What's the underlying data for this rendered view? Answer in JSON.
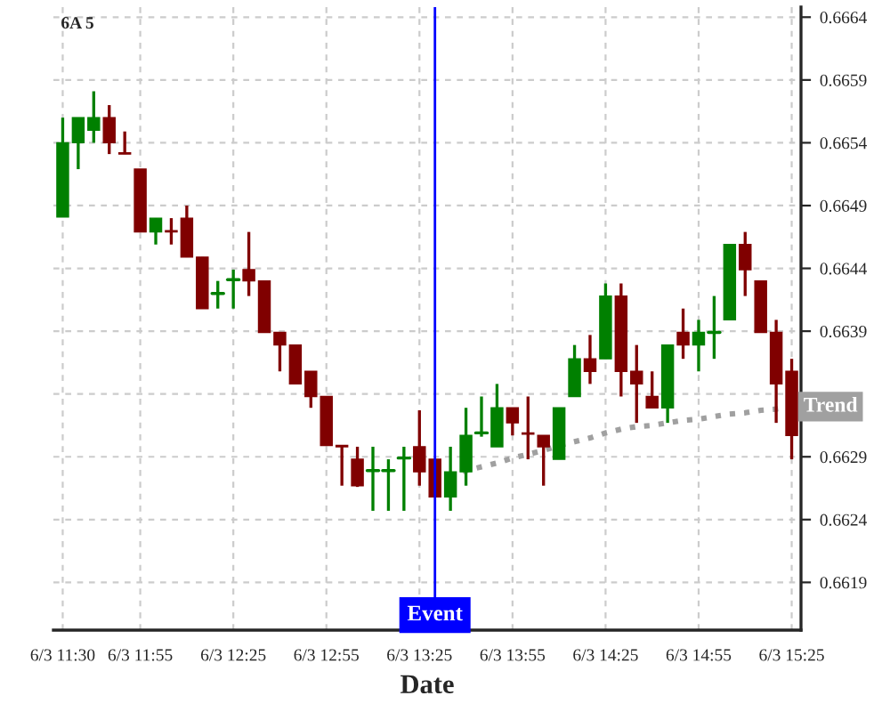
{
  "chart_data": {
    "type": "candlestick",
    "title": "6A 5",
    "xlabel": "Date",
    "categories": [
      "6/3 11:30",
      null,
      null,
      null,
      null,
      "6/3 11:55",
      null,
      null,
      null,
      null,
      null,
      "6/3 12:25",
      null,
      null,
      null,
      null,
      null,
      "6/3 12:55",
      null,
      null,
      null,
      null,
      null,
      "6/3 13:25",
      null,
      null,
      null,
      null,
      null,
      "6/3 13:55",
      null,
      null,
      null,
      null,
      null,
      "6/3 14:25",
      null,
      null,
      null,
      null,
      null,
      "6/3 14:55",
      null,
      null,
      null,
      null,
      null,
      "6/3 15:25"
    ],
    "ohlc": [
      [
        0.66481,
        0.6656,
        0.66481,
        0.6654
      ],
      [
        0.6654,
        0.6656,
        0.66519,
        0.6656
      ],
      [
        0.6655,
        0.66581,
        0.6654,
        0.6656
      ],
      [
        0.6656,
        0.6657,
        0.66531,
        0.6654
      ],
      [
        0.66532,
        0.66549,
        0.66531,
        0.66531
      ],
      [
        0.66519,
        0.66519,
        0.66469,
        0.66469
      ],
      [
        0.66469,
        0.6648,
        0.66459,
        0.6648
      ],
      [
        0.6647,
        0.6648,
        0.66459,
        0.66469
      ],
      [
        0.6648,
        0.6649,
        0.66449,
        0.66449
      ],
      [
        0.66449,
        0.66449,
        0.66408,
        0.66408
      ],
      [
        0.6642,
        0.6643,
        0.66408,
        0.6642
      ],
      [
        0.66431,
        0.66439,
        0.66408,
        0.66431
      ],
      [
        0.66439,
        0.66469,
        0.66418,
        0.6643
      ],
      [
        0.6643,
        0.6643,
        0.66389,
        0.66389
      ],
      [
        0.66389,
        0.66389,
        0.66358,
        0.66379
      ],
      [
        0.66379,
        0.66379,
        0.66348,
        0.66348
      ],
      [
        0.66358,
        0.66358,
        0.66329,
        0.66338
      ],
      [
        0.66338,
        0.66338,
        0.66299,
        0.66299
      ],
      [
        0.66299,
        0.66299,
        0.66267,
        0.66298
      ],
      [
        0.66288,
        0.66298,
        0.66266,
        0.66267
      ],
      [
        0.66279,
        0.66298,
        0.66247,
        0.66279
      ],
      [
        0.66279,
        0.66288,
        0.66247,
        0.66279
      ],
      [
        0.66289,
        0.66298,
        0.66247,
        0.66289
      ],
      [
        0.66298,
        0.66327,
        0.66267,
        0.66278
      ],
      [
        0.66288,
        0.66288,
        0.66258,
        0.66258
      ],
      [
        0.66258,
        0.66298,
        0.66247,
        0.66278
      ],
      [
        0.66278,
        0.66329,
        0.66267,
        0.66307
      ],
      [
        0.66309,
        0.66338,
        0.66306,
        0.66309
      ],
      [
        0.66298,
        0.66348,
        0.66298,
        0.66329
      ],
      [
        0.66329,
        0.66329,
        0.66307,
        0.66317
      ],
      [
        0.66309,
        0.66338,
        0.66288,
        0.66308
      ],
      [
        0.66307,
        0.66307,
        0.66267,
        0.66298
      ],
      [
        0.66288,
        0.66329,
        0.66288,
        0.66329
      ],
      [
        0.66338,
        0.66379,
        0.66338,
        0.66368
      ],
      [
        0.66368,
        0.66387,
        0.66348,
        0.66358
      ],
      [
        0.66368,
        0.66428,
        0.66368,
        0.66418
      ],
      [
        0.66418,
        0.66428,
        0.66338,
        0.66358
      ],
      [
        0.66358,
        0.66379,
        0.66317,
        0.66348
      ],
      [
        0.66338,
        0.66358,
        0.66329,
        0.66329
      ],
      [
        0.66329,
        0.66379,
        0.66317,
        0.66379
      ],
      [
        0.66389,
        0.66408,
        0.66368,
        0.66379
      ],
      [
        0.66379,
        0.66399,
        0.66358,
        0.66389
      ],
      [
        0.66389,
        0.66418,
        0.66368,
        0.66389
      ],
      [
        0.66399,
        0.66459,
        0.66399,
        0.66459
      ],
      [
        0.66459,
        0.66469,
        0.66418,
        0.66439
      ],
      [
        0.6643,
        0.6643,
        0.66389,
        0.66389
      ],
      [
        0.66389,
        0.66399,
        0.66317,
        0.66348
      ],
      [
        0.66358,
        0.66368,
        0.66288,
        0.66307
      ]
    ],
    "colors": [
      "#008000",
      "#008000",
      "#008000",
      "#800000",
      "#800000",
      "#800000",
      "#008000",
      "#800000",
      "#800000",
      "#800000",
      "#008000",
      "#008000",
      "#800000",
      "#800000",
      "#800000",
      "#800000",
      "#800000",
      "#800000",
      "#800000",
      "#800000",
      "#008000",
      "#008000",
      "#008000",
      "#800000",
      "#800000",
      "#008000",
      "#008000",
      "#008000",
      "#008000",
      "#800000",
      "#800000",
      "#800000",
      "#008000",
      "#008000",
      "#800000",
      "#008000",
      "#800000",
      "#800000",
      "#800000",
      "#008000",
      "#800000",
      "#008000",
      "#008000",
      "#008000",
      "#800000",
      "#800000",
      "#800000",
      "#800000"
    ],
    "series": [
      {
        "name": "Trend",
        "type": "line",
        "color": "#a0a0a0",
        "line_style": "dotted",
        "values": [
          null,
          null,
          null,
          null,
          null,
          null,
          null,
          null,
          null,
          null,
          null,
          null,
          null,
          null,
          null,
          null,
          null,
          null,
          null,
          null,
          null,
          null,
          null,
          null,
          0.66272,
          0.66275,
          0.66279,
          0.66282,
          0.66285,
          0.66289,
          0.66292,
          0.66295,
          0.66299,
          0.66302,
          0.66305,
          0.66309,
          0.66312,
          0.66314,
          0.66315,
          0.66317,
          0.66319,
          0.6632,
          0.66322,
          0.66324,
          0.66325,
          0.66327,
          0.66328,
          0.6633
        ]
      }
    ],
    "annotations": [
      "Event"
    ],
    "ylim": [
      0.66152,
      0.66648
    ],
    "yticks": [
      0.6619,
      0.6624,
      0.6629,
      {
        "value": 0.6634,
        "label": null
      },
      0.6639,
      0.6644,
      0.6649,
      0.6654,
      0.6659,
      0.6664
    ],
    "grid": true
  }
}
